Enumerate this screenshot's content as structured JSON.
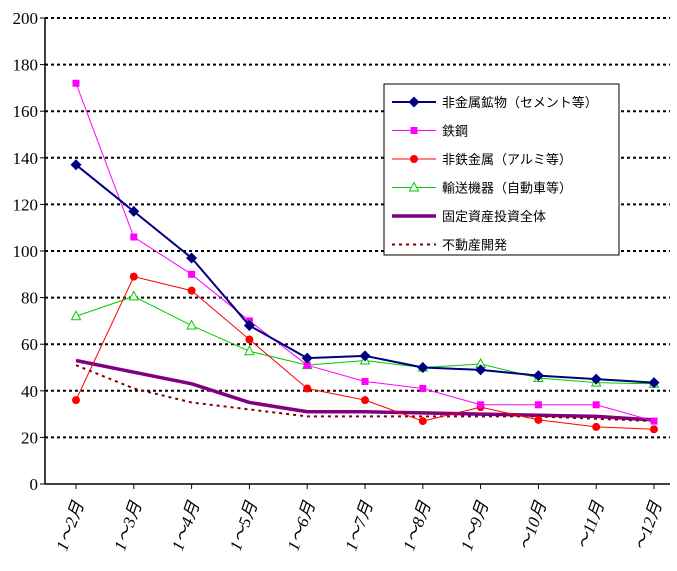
{
  "chart_data": {
    "type": "line",
    "title": "",
    "xlabel": "",
    "ylabel": "",
    "ylim": [
      0,
      200
    ],
    "yticks": [
      0,
      20,
      40,
      60,
      80,
      100,
      120,
      140,
      160,
      180,
      200
    ],
    "grid": "horizontal dotted",
    "legend_position": "right",
    "categories": [
      "1～2月",
      "1～3月",
      "1～4月",
      "1～5月",
      "1～6月",
      "1～7月",
      "1～8月",
      "1～9月",
      "～10月",
      "～11月",
      "～12月"
    ],
    "series": [
      {
        "name": "非金属鉱物（セメント等）",
        "color": "#000080",
        "marker": "diamond",
        "dash": "",
        "width": 2,
        "values": [
          137,
          117,
          97,
          68,
          54,
          55,
          50,
          49,
          46.5,
          45,
          43.5
        ]
      },
      {
        "name": "鉄鋼",
        "color": "#ff00ff",
        "marker": "square",
        "dash": "",
        "width": 1,
        "values": [
          172,
          106,
          90,
          70,
          51,
          44,
          41,
          34,
          34,
          34,
          27
        ]
      },
      {
        "name": "非鉄金属（アルミ等）",
        "color": "#ff0000",
        "marker": "circle",
        "dash": "",
        "width": 1,
        "values": [
          36,
          89,
          83,
          62,
          41,
          36,
          27,
          33,
          27.5,
          24.5,
          23.5
        ]
      },
      {
        "name": "輸送機器（自動車等）",
        "color": "#00cc00",
        "marker": "triangle",
        "dash": "",
        "width": 1,
        "values": [
          72,
          80.5,
          68,
          57,
          51,
          53,
          50,
          51.5,
          45.5,
          43.5,
          43
        ]
      },
      {
        "name": "固定資産投資全体",
        "color": "#800080",
        "marker": "none",
        "dash": "",
        "width": 3.5,
        "values": [
          53,
          48,
          43,
          35,
          31,
          31,
          30.5,
          30,
          29.5,
          29,
          27.5
        ]
      },
      {
        "name": "不動産開発",
        "color": "#800000",
        "marker": "none",
        "dash": "3,4",
        "width": 2,
        "values": [
          51,
          41,
          35,
          32,
          29,
          29,
          29,
          29,
          29,
          28,
          27
        ]
      }
    ]
  }
}
